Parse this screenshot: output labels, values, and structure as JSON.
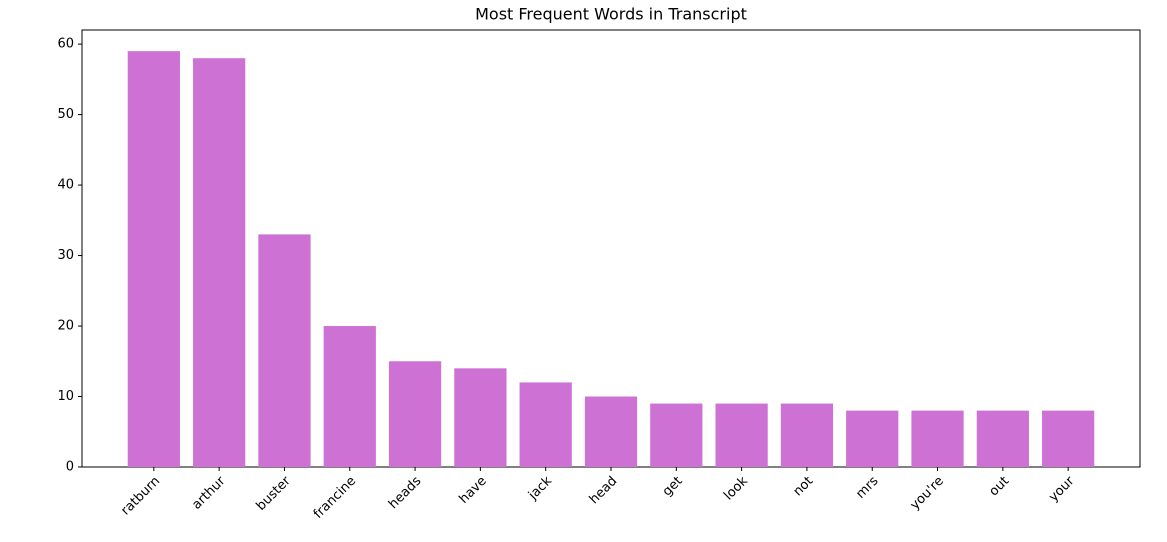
{
  "chart_data": {
    "type": "bar",
    "title": "Most Frequent Words in Transcript",
    "categories": [
      "ratburn",
      "arthur",
      "buster",
      "francine",
      "heads",
      "have",
      "jack",
      "head",
      "get",
      "look",
      "not",
      "mrs",
      "you're",
      "out",
      "your"
    ],
    "values": [
      59,
      58,
      33,
      20,
      15,
      14,
      12,
      10,
      9,
      9,
      9,
      8,
      8,
      8,
      8
    ],
    "color": "#cd72d4",
    "ylim": [
      0,
      62
    ],
    "yticks": [
      0,
      10,
      20,
      30,
      40,
      50,
      60
    ],
    "grid": false
  }
}
